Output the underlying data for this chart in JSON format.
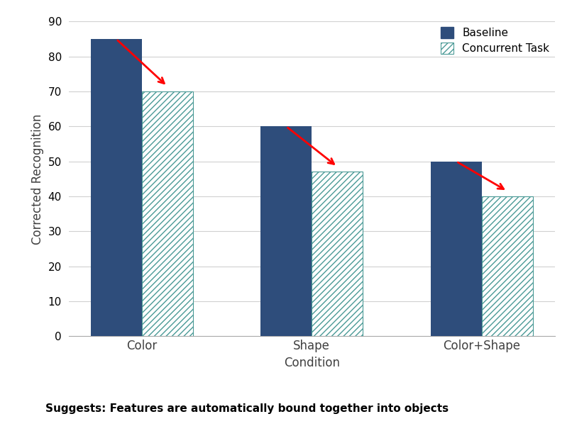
{
  "categories": [
    "Color",
    "Shape",
    "Color+Shape"
  ],
  "xlabel": "Condition",
  "ylabel": "Corrected Recognition",
  "baseline_values": [
    85,
    60,
    50
  ],
  "concurrent_values": [
    70,
    47,
    40
  ],
  "baseline_color": "#2E4D7B",
  "concurrent_hatch_color": "#4A9A96",
  "ylim": [
    0,
    90
  ],
  "yticks": [
    0,
    10,
    20,
    30,
    40,
    50,
    60,
    70,
    80,
    90
  ],
  "legend_labels": [
    "Baseline",
    "Concurrent Task"
  ],
  "subtitle": "Suggests: Features are automatically bound together into objects",
  "bar_width": 0.3,
  "figsize": [
    8.06,
    6.08
  ],
  "dpi": 100
}
